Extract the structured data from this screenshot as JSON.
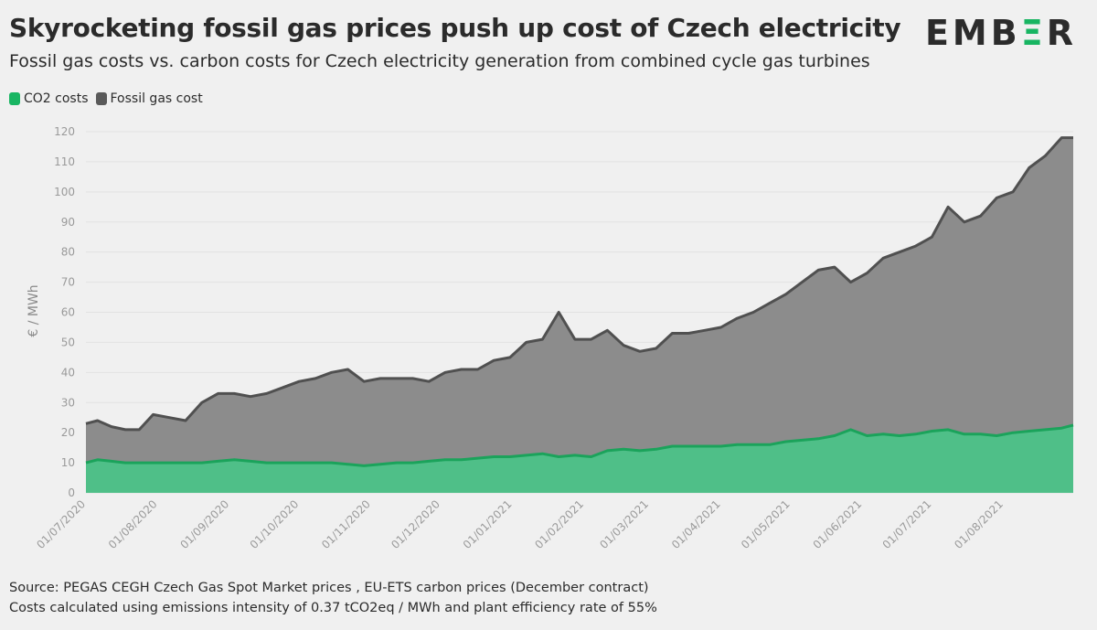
{
  "header": {
    "title": "Skyrocketing fossil gas prices push up cost of Czech electricity",
    "subtitle": "Fossil gas costs vs. carbon costs for Czech electricity generation from combined cycle gas turbines",
    "logo": "EMBER"
  },
  "legend": [
    {
      "label": "CO2 costs",
      "color": "#18b562"
    },
    {
      "label": "Fossil gas cost",
      "color": "#5a5a5a"
    }
  ],
  "footer": {
    "source": "Source: PEGAS CEGH Czech Gas Spot Market prices , EU-ETS carbon prices (December contract)",
    "note": "Costs calculated using emissions intensity of 0.37 tCO2eq / MWh and plant efficiency rate of 55%"
  },
  "colors": {
    "co2_fill": "#4fbf88",
    "co2_line": "#1ba35b",
    "gas_fill": "#8c8c8c",
    "gas_line": "#505050"
  },
  "chart_data": {
    "type": "area",
    "stacked": true,
    "ylabel": "€ / MWh",
    "xlabel": "",
    "ylim": [
      0,
      120
    ],
    "yticks": [
      0,
      10,
      20,
      30,
      40,
      50,
      60,
      70,
      80,
      90,
      100,
      110,
      120
    ],
    "xlim": [
      "2020-07-01",
      "2021-08-31"
    ],
    "xticks": [
      "01/07/2020",
      "01/08/2020",
      "01/09/2020",
      "01/10/2020",
      "01/11/2020",
      "01/12/2020",
      "01/01/2021",
      "01/02/2021",
      "01/03/2021",
      "01/04/2021",
      "01/05/2021",
      "01/06/2021",
      "01/07/2021",
      "01/08/2021"
    ],
    "grid": true,
    "x": [
      "2020-07-01",
      "2020-07-06",
      "2020-07-12",
      "2020-07-18",
      "2020-07-24",
      "2020-07-30",
      "2020-08-06",
      "2020-08-13",
      "2020-08-20",
      "2020-08-27",
      "2020-09-03",
      "2020-09-10",
      "2020-09-17",
      "2020-09-24",
      "2020-10-01",
      "2020-10-08",
      "2020-10-15",
      "2020-10-22",
      "2020-10-29",
      "2020-11-05",
      "2020-11-12",
      "2020-11-19",
      "2020-11-26",
      "2020-12-03",
      "2020-12-10",
      "2020-12-17",
      "2020-12-24",
      "2020-12-31",
      "2021-01-07",
      "2021-01-14",
      "2021-01-21",
      "2021-01-28",
      "2021-02-04",
      "2021-02-11",
      "2021-02-18",
      "2021-02-25",
      "2021-03-04",
      "2021-03-11",
      "2021-03-18",
      "2021-03-25",
      "2021-04-01",
      "2021-04-08",
      "2021-04-15",
      "2021-04-22",
      "2021-04-29",
      "2021-05-06",
      "2021-05-13",
      "2021-05-20",
      "2021-05-27",
      "2021-06-03",
      "2021-06-10",
      "2021-06-17",
      "2021-06-24",
      "2021-07-01",
      "2021-07-08",
      "2021-07-15",
      "2021-07-22",
      "2021-07-29",
      "2021-08-05",
      "2021-08-12",
      "2021-08-19",
      "2021-08-26",
      "2021-08-31"
    ],
    "series": [
      {
        "name": "CO2 costs",
        "values": [
          10,
          11,
          10.5,
          10,
          10,
          10,
          10,
          10,
          10,
          10.5,
          11,
          10.5,
          10,
          10,
          10,
          10,
          10,
          9.5,
          9,
          9.5,
          10,
          10,
          10.5,
          11,
          11,
          11.5,
          12,
          12,
          12.5,
          13,
          12,
          12.5,
          12,
          14,
          14.5,
          14,
          14.5,
          15.5,
          15.5,
          15.5,
          15.5,
          16,
          16,
          16,
          17,
          17.5,
          18,
          19,
          21,
          19,
          19.5,
          19,
          19.5,
          20.5,
          21,
          19.5,
          19.5,
          19,
          20,
          20.5,
          21,
          21.5,
          22.5
        ]
      },
      {
        "name": "Fossil gas cost",
        "total": [
          23,
          24,
          22,
          21,
          21,
          26,
          25,
          24,
          30,
          33,
          33,
          32,
          33,
          35,
          37,
          38,
          40,
          41,
          37,
          38,
          38,
          38,
          37,
          40,
          41,
          41,
          44,
          45,
          50,
          51,
          60,
          51,
          51,
          54,
          49,
          47,
          48,
          53,
          53,
          54,
          55,
          58,
          60,
          63,
          66,
          70,
          74,
          75,
          70,
          73,
          78,
          80,
          82,
          85,
          95,
          90,
          92,
          98,
          100,
          108,
          112,
          118,
          118
        ]
      }
    ]
  }
}
